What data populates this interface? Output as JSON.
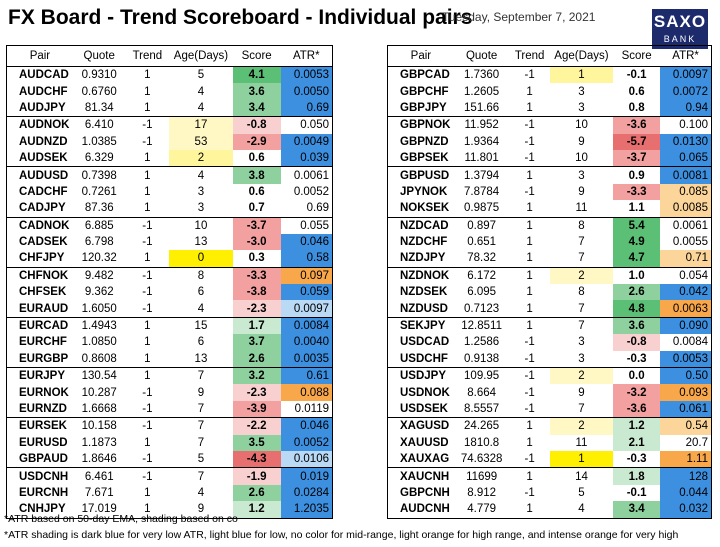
{
  "header": {
    "title": "FX Board - Trend Scoreboard - Individual pairs",
    "date": "Tuesday, September 7, 2021",
    "logo_top": "SAXO",
    "logo_bottom": "BANK"
  },
  "columns": [
    "Pair",
    "Quote",
    "Trend",
    "Age(Days)",
    "Score",
    "ATR*"
  ],
  "colors": {
    "score_green": "#8fd19e",
    "score_red": "#f2a0a0",
    "age_yellow": "#fff59d",
    "age_yellow_strong": "#ffef00",
    "atr_dark_blue": "#3d8fe0",
    "atr_light_blue": "#b9d9f5",
    "atr_light_orange": "#fbd59a",
    "atr_intense_orange": "#f8a74a"
  },
  "left_table": [
    {
      "pair": "AUDCAD",
      "quote": "0.9310",
      "trend": "1",
      "age": "5",
      "score": "4.1",
      "atr": "0.0053",
      "age_c": "",
      "score_c": "g3",
      "atr_c": "db"
    },
    {
      "pair": "AUDCHF",
      "quote": "0.6760",
      "trend": "1",
      "age": "4",
      "score": "3.6",
      "atr": "0.0050",
      "age_c": "",
      "score_c": "g2",
      "atr_c": "db"
    },
    {
      "pair": "AUDJPY",
      "quote": "81.34",
      "trend": "1",
      "age": "4",
      "score": "3.4",
      "atr": "0.69",
      "age_c": "",
      "score_c": "g2",
      "atr_c": "db"
    },
    {
      "pair": "AUDNOK",
      "quote": "6.410",
      "trend": "-1",
      "age": "17",
      "score": "-0.8",
      "atr": "0.050",
      "age_c": "y1",
      "score_c": "r1",
      "atr_c": "",
      "gs": true
    },
    {
      "pair": "AUDNZD",
      "quote": "1.0385",
      "trend": "-1",
      "age": "53",
      "score": "-2.9",
      "atr": "0.0049",
      "age_c": "y1",
      "score_c": "r2",
      "atr_c": "db"
    },
    {
      "pair": "AUDSEK",
      "quote": "6.329",
      "trend": "1",
      "age": "2",
      "score": "0.6",
      "atr": "0.039",
      "age_c": "y2",
      "score_c": "",
      "atr_c": "db"
    },
    {
      "pair": "AUDUSD",
      "quote": "0.7398",
      "trend": "1",
      "age": "4",
      "score": "3.8",
      "atr": "0.0061",
      "age_c": "",
      "score_c": "g2",
      "atr_c": "",
      "gs": true
    },
    {
      "pair": "CADCHF",
      "quote": "0.7261",
      "trend": "1",
      "age": "3",
      "score": "0.6",
      "atr": "0.0052",
      "age_c": "",
      "score_c": "",
      "atr_c": ""
    },
    {
      "pair": "CADJPY",
      "quote": "87.36",
      "trend": "1",
      "age": "3",
      "score": "0.7",
      "atr": "0.69",
      "age_c": "",
      "score_c": "",
      "atr_c": ""
    },
    {
      "pair": "CADNOK",
      "quote": "6.885",
      "trend": "-1",
      "age": "10",
      "score": "-3.7",
      "atr": "0.055",
      "age_c": "",
      "score_c": "r2",
      "atr_c": "",
      "gs": true
    },
    {
      "pair": "CADSEK",
      "quote": "6.798",
      "trend": "-1",
      "age": "13",
      "score": "-3.0",
      "atr": "0.046",
      "age_c": "",
      "score_c": "r2",
      "atr_c": "db"
    },
    {
      "pair": "CHFJPY",
      "quote": "120.32",
      "trend": "1",
      "age": "0",
      "score": "0.3",
      "atr": "0.58",
      "age_c": "y3",
      "score_c": "",
      "atr_c": "db"
    },
    {
      "pair": "CHFNOK",
      "quote": "9.482",
      "trend": "-1",
      "age": "8",
      "score": "-3.3",
      "atr": "0.097",
      "age_c": "",
      "score_c": "r2",
      "atr_c": "io",
      "gs": true
    },
    {
      "pair": "CHFSEK",
      "quote": "9.362",
      "trend": "-1",
      "age": "6",
      "score": "-3.8",
      "atr": "0.059",
      "age_c": "",
      "score_c": "r2",
      "atr_c": "db"
    },
    {
      "pair": "EURAUD",
      "quote": "1.6050",
      "trend": "-1",
      "age": "4",
      "score": "-2.3",
      "atr": "0.0097",
      "age_c": "",
      "score_c": "r1",
      "atr_c": "lb"
    },
    {
      "pair": "EURCAD",
      "quote": "1.4943",
      "trend": "1",
      "age": "15",
      "score": "1.7",
      "atr": "0.0084",
      "age_c": "",
      "score_c": "g1",
      "atr_c": "db",
      "gs": true
    },
    {
      "pair": "EURCHF",
      "quote": "1.0850",
      "trend": "1",
      "age": "6",
      "score": "3.7",
      "atr": "0.0040",
      "age_c": "",
      "score_c": "g2",
      "atr_c": "db"
    },
    {
      "pair": "EURGBP",
      "quote": "0.8608",
      "trend": "1",
      "age": "13",
      "score": "2.6",
      "atr": "0.0035",
      "age_c": "",
      "score_c": "g2",
      "atr_c": "db"
    },
    {
      "pair": "EURJPY",
      "quote": "130.54",
      "trend": "1",
      "age": "7",
      "score": "3.2",
      "atr": "0.61",
      "age_c": "",
      "score_c": "g2",
      "atr_c": "db",
      "gs": true
    },
    {
      "pair": "EURNOK",
      "quote": "10.287",
      "trend": "-1",
      "age": "9",
      "score": "-2.3",
      "atr": "0.088",
      "age_c": "",
      "score_c": "r1",
      "atr_c": "io"
    },
    {
      "pair": "EURNZD",
      "quote": "1.6668",
      "trend": "-1",
      "age": "7",
      "score": "-3.9",
      "atr": "0.0119",
      "age_c": "",
      "score_c": "r2",
      "atr_c": ""
    },
    {
      "pair": "EURSEK",
      "quote": "10.158",
      "trend": "-1",
      "age": "7",
      "score": "-2.2",
      "atr": "0.046",
      "age_c": "",
      "score_c": "r1",
      "atr_c": "db",
      "gs": true
    },
    {
      "pair": "EURUSD",
      "quote": "1.1873",
      "trend": "1",
      "age": "7",
      "score": "3.5",
      "atr": "0.0052",
      "age_c": "",
      "score_c": "g2",
      "atr_c": "db"
    },
    {
      "pair": "GBPAUD",
      "quote": "1.8646",
      "trend": "-1",
      "age": "5",
      "score": "-4.3",
      "atr": "0.0106",
      "age_c": "",
      "score_c": "r3",
      "atr_c": "lb"
    },
    {
      "pair": "USDCNH",
      "quote": "6.461",
      "trend": "-1",
      "age": "7",
      "score": "-1.9",
      "atr": "0.019",
      "age_c": "",
      "score_c": "r1",
      "atr_c": "db",
      "gs": true
    },
    {
      "pair": "EURCNH",
      "quote": "7.671",
      "trend": "1",
      "age": "4",
      "score": "2.6",
      "atr": "0.0284",
      "age_c": "",
      "score_c": "g2",
      "atr_c": "db"
    },
    {
      "pair": "CNHJPY",
      "quote": "17.019",
      "trend": "1",
      "age": "9",
      "score": "1.2",
      "atr": "1.2035",
      "age_c": "",
      "score_c": "g1",
      "atr_c": "db"
    }
  ],
  "right_table": [
    {
      "pair": "GBPCAD",
      "quote": "1.7360",
      "trend": "-1",
      "age": "1",
      "score": "-0.1",
      "atr": "0.0097",
      "age_c": "y2",
      "score_c": "",
      "atr_c": "db"
    },
    {
      "pair": "GBPCHF",
      "quote": "1.2605",
      "trend": "1",
      "age": "3",
      "score": "0.6",
      "atr": "0.0072",
      "age_c": "",
      "score_c": "",
      "atr_c": "db"
    },
    {
      "pair": "GBPJPY",
      "quote": "151.66",
      "trend": "1",
      "age": "3",
      "score": "0.8",
      "atr": "0.94",
      "age_c": "",
      "score_c": "",
      "atr_c": "db"
    },
    {
      "pair": "GBPNOK",
      "quote": "11.952",
      "trend": "-1",
      "age": "10",
      "score": "-3.6",
      "atr": "0.100",
      "age_c": "",
      "score_c": "r2",
      "atr_c": "",
      "gs": true
    },
    {
      "pair": "GBPNZD",
      "quote": "1.9364",
      "trend": "-1",
      "age": "9",
      "score": "-5.7",
      "atr": "0.0130",
      "age_c": "",
      "score_c": "r3",
      "atr_c": "db"
    },
    {
      "pair": "GBPSEK",
      "quote": "11.801",
      "trend": "-1",
      "age": "10",
      "score": "-3.7",
      "atr": "0.065",
      "age_c": "",
      "score_c": "r2",
      "atr_c": "db"
    },
    {
      "pair": "GBPUSD",
      "quote": "1.3794",
      "trend": "1",
      "age": "3",
      "score": "0.9",
      "atr": "0.0081",
      "age_c": "",
      "score_c": "",
      "atr_c": "db",
      "gs": true
    },
    {
      "pair": "JPYNOK",
      "quote": "7.8784",
      "trend": "-1",
      "age": "9",
      "score": "-3.3",
      "atr": "0.085",
      "age_c": "",
      "score_c": "r2",
      "atr_c": "lo"
    },
    {
      "pair": "NOKSEK",
      "quote": "0.9875",
      "trend": "1",
      "age": "11",
      "score": "1.1",
      "atr": "0.0085",
      "age_c": "",
      "score_c": "",
      "atr_c": "lo"
    },
    {
      "pair": "NZDCAD",
      "quote": "0.897",
      "trend": "1",
      "age": "8",
      "score": "5.4",
      "atr": "0.0061",
      "age_c": "",
      "score_c": "g3",
      "atr_c": "",
      "gs": true
    },
    {
      "pair": "NZDCHF",
      "quote": "0.651",
      "trend": "1",
      "age": "7",
      "score": "4.9",
      "atr": "0.0055",
      "age_c": "",
      "score_c": "g3",
      "atr_c": ""
    },
    {
      "pair": "NZDJPY",
      "quote": "78.32",
      "trend": "1",
      "age": "7",
      "score": "4.7",
      "atr": "0.71",
      "age_c": "",
      "score_c": "g3",
      "atr_c": "lo"
    },
    {
      "pair": "NZDNOK",
      "quote": "6.172",
      "trend": "1",
      "age": "2",
      "score": "1.0",
      "atr": "0.054",
      "age_c": "y1",
      "score_c": "",
      "atr_c": "",
      "gs": true
    },
    {
      "pair": "NZDSEK",
      "quote": "6.095",
      "trend": "1",
      "age": "8",
      "score": "2.6",
      "atr": "0.042",
      "age_c": "",
      "score_c": "g2",
      "atr_c": "db"
    },
    {
      "pair": "NZDUSD",
      "quote": "0.7123",
      "trend": "1",
      "age": "7",
      "score": "4.8",
      "atr": "0.0063",
      "age_c": "",
      "score_c": "g3",
      "atr_c": "io"
    },
    {
      "pair": "SEKJPY",
      "quote": "12.8511",
      "trend": "1",
      "age": "7",
      "score": "3.6",
      "atr": "0.090",
      "age_c": "",
      "score_c": "g2",
      "atr_c": "db",
      "gs": true
    },
    {
      "pair": "USDCAD",
      "quote": "1.2586",
      "trend": "-1",
      "age": "3",
      "score": "-0.8",
      "atr": "0.0084",
      "age_c": "",
      "score_c": "r1",
      "atr_c": ""
    },
    {
      "pair": "USDCHF",
      "quote": "0.9138",
      "trend": "-1",
      "age": "3",
      "score": "-0.3",
      "atr": "0.0053",
      "age_c": "",
      "score_c": "",
      "atr_c": "db"
    },
    {
      "pair": "USDJPY",
      "quote": "109.95",
      "trend": "-1",
      "age": "2",
      "score": "0.0",
      "atr": "0.50",
      "age_c": "y1",
      "score_c": "",
      "atr_c": "db",
      "gs": true
    },
    {
      "pair": "USDNOK",
      "quote": "8.664",
      "trend": "-1",
      "age": "9",
      "score": "-3.2",
      "atr": "0.093",
      "age_c": "",
      "score_c": "r2",
      "atr_c": "io"
    },
    {
      "pair": "USDSEK",
      "quote": "8.5557",
      "trend": "-1",
      "age": "7",
      "score": "-3.6",
      "atr": "0.061",
      "age_c": "",
      "score_c": "r2",
      "atr_c": "db"
    },
    {
      "pair": "XAGUSD",
      "quote": "24.265",
      "trend": "1",
      "age": "2",
      "score": "1.2",
      "atr": "0.54",
      "age_c": "y1",
      "score_c": "g1",
      "atr_c": "lo",
      "gs": true
    },
    {
      "pair": "XAUUSD",
      "quote": "1810.8",
      "trend": "1",
      "age": "11",
      "score": "2.1",
      "atr": "20.7",
      "age_c": "",
      "score_c": "g1",
      "atr_c": ""
    },
    {
      "pair": "XAUXAG",
      "quote": "74.6328",
      "trend": "-1",
      "age": "1",
      "score": "-0.3",
      "atr": "1.11",
      "age_c": "y3",
      "score_c": "",
      "atr_c": "io"
    },
    {
      "pair": "XAUCNH",
      "quote": "11699",
      "trend": "1",
      "age": "14",
      "score": "1.8",
      "atr": "128",
      "age_c": "",
      "score_c": "g1",
      "atr_c": "db",
      "gs": true
    },
    {
      "pair": "GBPCNH",
      "quote": "8.912",
      "trend": "-1",
      "age": "5",
      "score": "-0.1",
      "atr": "0.044",
      "age_c": "",
      "score_c": "",
      "atr_c": "db"
    },
    {
      "pair": "AUDCNH",
      "quote": "4.779",
      "trend": "1",
      "age": "4",
      "score": "3.4",
      "atr": "0.032",
      "age_c": "",
      "score_c": "g2",
      "atr_c": "db"
    }
  ],
  "footer": {
    "note1": "*ATR based on 50-day EMA, shading based on co",
    "note2": "*ATR shading is dark blue for very low ATR, light blue for low, no color for mid-range, light orange for high range, and intense orange for very high"
  }
}
